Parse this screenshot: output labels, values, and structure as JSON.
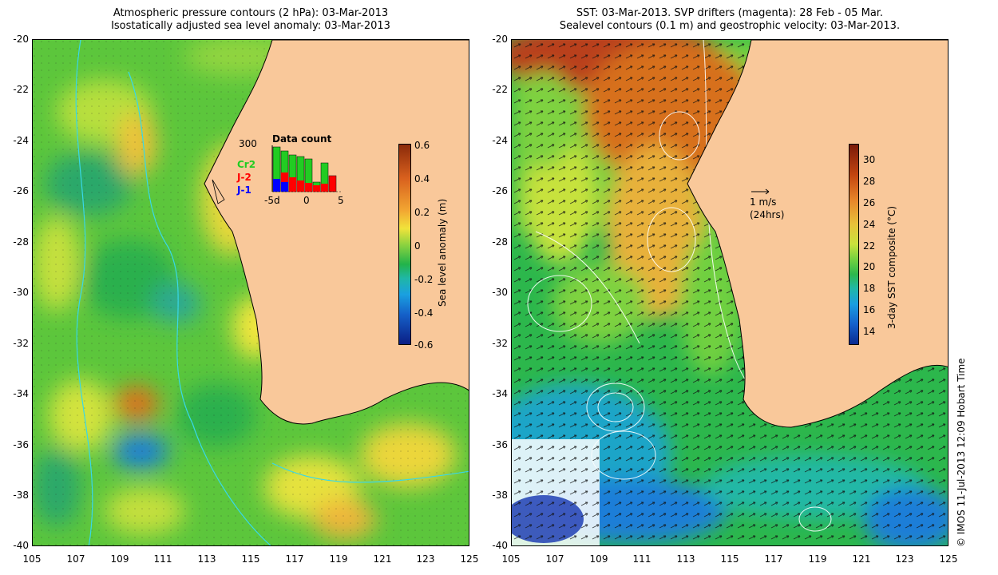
{
  "left": {
    "title_line1": "Atmospheric pressure contours (2 hPa): 03-Mar-2013",
    "title_line2": "Isostatically adjusted sea level anomaly: 03-Mar-2013",
    "colorbar": {
      "label": "Sea level anomaly (m)",
      "ticks": [
        "0.6",
        "0.4",
        "0.2",
        "0",
        "-0.2",
        "-0.4",
        "-0.6"
      ],
      "colors": [
        "#8b2a0a",
        "#d9611e",
        "#f2a632",
        "#f1e33b",
        "#8fd33f",
        "#22b34a",
        "#1fb7a6",
        "#1aa0e0",
        "#1561c9",
        "#0b1e84"
      ]
    },
    "inset": {
      "title": "Data count",
      "max_label": "300",
      "x_ticks": [
        "-5d",
        "0",
        "5"
      ],
      "legend": [
        {
          "name": "Cr2",
          "color": "#22cc22"
        },
        {
          "name": "J-2",
          "color": "#ff0000"
        },
        {
          "name": "J-1",
          "color": "#0000ff"
        }
      ]
    }
  },
  "right": {
    "title_line1": "SST: 03-Mar-2013. SVP drifters (magenta): 28 Feb - 05 Mar.",
    "title_line2": "Sealevel contours (0.1 m) and geostrophic velocity: 03-Mar-2013.",
    "scale_arrow_label_1": "1 m/s",
    "scale_arrow_label_2": "(24hrs)",
    "colorbar": {
      "label": "3-day SST composite (°C)",
      "ticks": [
        "30",
        "28",
        "26",
        "24",
        "22",
        "20",
        "18",
        "16",
        "14"
      ],
      "colors": [
        "#7a1a0a",
        "#c2440f",
        "#e8862a",
        "#e8c23a",
        "#c9e23c",
        "#6fd040",
        "#2db84c",
        "#20b8a6",
        "#1a9ee0",
        "#1560cc",
        "#0a2a90"
      ]
    }
  },
  "axes": {
    "y_ticks": [
      "-20",
      "-22",
      "-24",
      "-26",
      "-28",
      "-30",
      "-32",
      "-34",
      "-36",
      "-38",
      "-40"
    ],
    "x_ticks": [
      "105",
      "107",
      "109",
      "111",
      "113",
      "115",
      "117",
      "119",
      "121",
      "123",
      "125"
    ]
  },
  "land_color": "#f9c89a",
  "credit": "© IMOS 11-Jul-2013 12:09 Hobart Time"
}
